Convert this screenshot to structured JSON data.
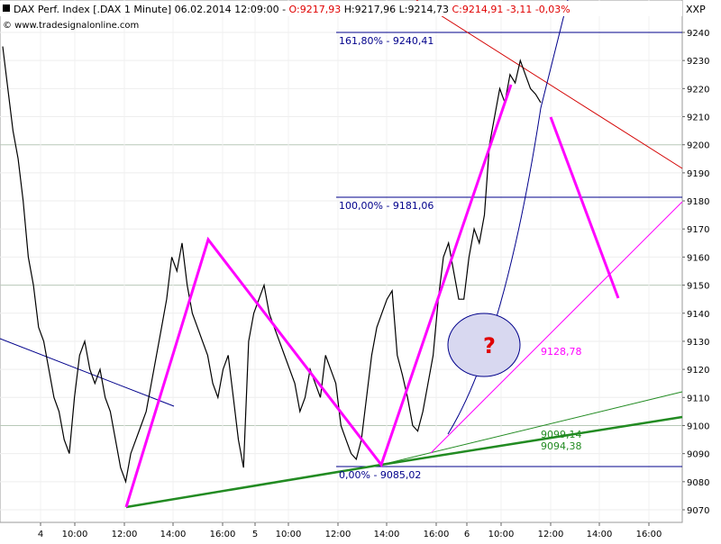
{
  "header": {
    "symbol": "DAX Perf. Index [.DAX  1 Minute] 06.02.2014 12:09:00 - ",
    "open": "O:9217,93",
    "high": " H:9217,96",
    "low": " L:9214,73 ",
    "close": "C:9214,91 -3,11 -0,03%",
    "watermark": "© www.tradesignalonline.com",
    "axis_unit": "XXP"
  },
  "colors": {
    "price": "#000000",
    "magenta": "#ff00ff",
    "fib": "#00008b",
    "green": "#228b22",
    "red_trend": "#d40000",
    "neg": "#e00000",
    "grid": "#d8d8d8"
  },
  "chart_data": {
    "type": "line",
    "ylim": [
      9065,
      9250
    ],
    "y_ticks": [
      "9070",
      "9080",
      "9090",
      "9100",
      "9110",
      "9120",
      "9130",
      "9140",
      "9150",
      "9160",
      "9170",
      "9180",
      "9190",
      "9200",
      "9210",
      "9220",
      "9230",
      "9240"
    ],
    "x_ticks": [
      "4",
      "10:00",
      "12:00",
      "14:00",
      "16:00",
      "5",
      "10:00",
      "12:00",
      "14:00",
      "16:00",
      "6",
      "10:00",
      "12:00",
      "14:00",
      "16:00"
    ],
    "series": [
      {
        "values": [
          9235,
          9220,
          9205,
          9195,
          9180,
          9160,
          9150,
          9135,
          9130,
          9120,
          9110,
          9105,
          9095,
          9090,
          9110,
          9125,
          9130,
          9120,
          9115,
          9120,
          9110,
          9105,
          9095,
          9085,
          9080,
          9090,
          9095,
          9100,
          9105,
          9115,
          9125,
          9135,
          9145,
          9160,
          9155,
          9165,
          9150,
          9140,
          9135,
          9130,
          9125,
          9115,
          9110,
          9120,
          9125,
          9110,
          9095,
          9085,
          9130,
          9140,
          9145,
          9150,
          9140,
          9135,
          9130,
          9125,
          9120,
          9115,
          9105,
          9110,
          9120,
          9115,
          9110,
          9125,
          9120,
          9115,
          9100,
          9095,
          9090,
          9088,
          9095,
          9110,
          9125,
          9135,
          9140,
          9145,
          9148,
          9125,
          9118,
          9110,
          9100,
          9098,
          9105,
          9115,
          9125,
          9145,
          9160,
          9165,
          9155,
          9145,
          9145,
          9160,
          9170,
          9165,
          9175,
          9200,
          9210,
          9220,
          9215,
          9225,
          9222,
          9230,
          9225,
          9220,
          9218,
          9215
        ]
      }
    ],
    "annotations": {
      "fib_161": "161,80% - 9240,41",
      "fib_100": "100,00% - 9181,06",
      "fib_0": "0,00% - 9085,02",
      "pink_target": "9128,78",
      "green_1": "9099,14",
      "green_2": "9094,38",
      "question": "?"
    }
  }
}
